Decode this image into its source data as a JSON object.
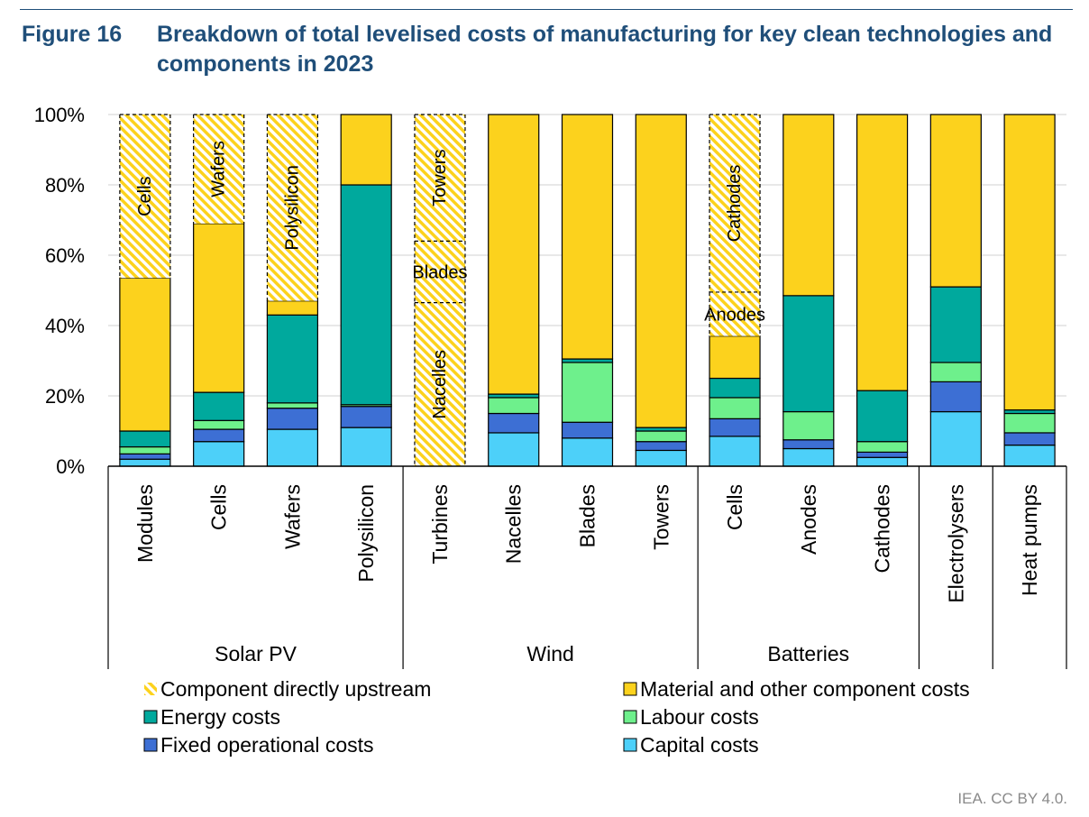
{
  "figure": {
    "label": "Figure 16",
    "title": "Breakdown of total levelised costs of manufacturing for key clean technologies and components in 2023"
  },
  "colors": {
    "capital": "#4dd0f9",
    "fixed": "#3d6fd4",
    "labour": "#6ef08c",
    "energy": "#00a99d",
    "material": "#fcd21d",
    "upstream": "#fcd21d",
    "grid": "#d9d9d9",
    "axis": "#000000"
  },
  "chart_data": {
    "type": "bar",
    "stacked": true,
    "ylim": [
      0,
      100
    ],
    "ytick_labels": [
      "0%",
      "20%",
      "40%",
      "60%",
      "80%",
      "100%"
    ],
    "grid": true,
    "legend_position": "bottom",
    "categories": [
      "Modules",
      "Cells",
      "Wafers",
      "Polysilicon",
      "Turbines",
      "Nacelles",
      "Blades",
      "Towers",
      "Cells",
      "Anodes",
      "Cathodes",
      "Electrolysers",
      "Heat pumps"
    ],
    "groups": [
      {
        "label": "Solar PV",
        "count": 4
      },
      {
        "label": "Wind",
        "count": 4
      },
      {
        "label": "Batteries",
        "count": 3
      },
      {
        "label": "",
        "count": 1
      },
      {
        "label": "",
        "count": 1
      }
    ],
    "series": [
      {
        "key": "capital",
        "name": "Capital costs",
        "values": [
          2,
          7,
          10.5,
          11,
          0,
          9.5,
          8,
          4.5,
          8.5,
          5,
          2.5,
          15.5,
          6
        ]
      },
      {
        "key": "fixed",
        "name": "Fixed operational costs",
        "values": [
          1.5,
          3.5,
          6,
          6,
          0,
          5.5,
          4.5,
          2.5,
          5,
          2.5,
          1.5,
          8.5,
          3.5
        ]
      },
      {
        "key": "labour",
        "name": "Labour costs",
        "values": [
          2,
          2.5,
          1.5,
          0.5,
          0,
          4.5,
          17,
          3,
          6,
          8,
          3,
          5.5,
          5.5
        ]
      },
      {
        "key": "energy",
        "name": "Energy costs",
        "values": [
          4.5,
          8,
          25,
          62.5,
          0,
          1,
          1,
          1,
          5.5,
          33,
          14.5,
          21.5,
          1
        ]
      },
      {
        "key": "material",
        "name": "Material and other component costs",
        "values": [
          43.5,
          48,
          4,
          20,
          0,
          79.5,
          69.5,
          89,
          12,
          51.5,
          78.5,
          49,
          84
        ]
      },
      {
        "key": "upstream",
        "name": "Component directly upstream",
        "hatched": true,
        "values": [
          46.5,
          31,
          53,
          0,
          100,
          0,
          0,
          0,
          63,
          0,
          0,
          0,
          0
        ]
      }
    ],
    "upstream_segments": [
      {
        "bar": 0,
        "from": 53.5,
        "to": 100,
        "label": "Cells",
        "rotated": true
      },
      {
        "bar": 1,
        "from": 69,
        "to": 100,
        "label": "Wafers",
        "rotated": true
      },
      {
        "bar": 2,
        "from": 47,
        "to": 100,
        "label": "Polysilicon",
        "rotated": true
      },
      {
        "bar": 4,
        "from": 0,
        "to": 46.5,
        "label": "Nacelles",
        "rotated": true
      },
      {
        "bar": 4,
        "from": 46.5,
        "to": 64,
        "label": "Blades",
        "rotated": false
      },
      {
        "bar": 4,
        "from": 64,
        "to": 100,
        "label": "Towers",
        "rotated": true
      },
      {
        "bar": 8,
        "from": 37,
        "to": 49.5,
        "label": "Anodes",
        "rotated": false
      },
      {
        "bar": 8,
        "from": 49.5,
        "to": 100,
        "label": "Cathodes",
        "rotated": true
      }
    ],
    "legend": [
      {
        "key": "upstream",
        "label": "Component directly upstream"
      },
      {
        "key": "material",
        "label": "Material and other component costs"
      },
      {
        "key": "energy",
        "label": "Energy costs"
      },
      {
        "key": "labour",
        "label": "Labour costs"
      },
      {
        "key": "fixed",
        "label": "Fixed operational costs"
      },
      {
        "key": "capital",
        "label": "Capital costs"
      }
    ]
  },
  "credit": "IEA. CC BY 4.0."
}
